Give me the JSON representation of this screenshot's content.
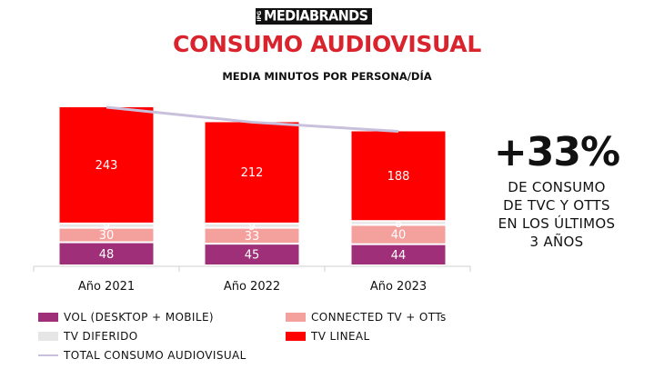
{
  "header": {
    "logo_prefix": "IPG",
    "logo_text": "MEDIABRANDS",
    "title": "CONSUMO AUDIOVISUAL",
    "subtitle": "MEDIA MINUTOS POR PERSONA/DÍA"
  },
  "callout": {
    "value": "+33%",
    "lines": [
      "DE CONSUMO",
      "DE TVC Y OTTS",
      "EN LOS ÚLTIMOS",
      "3 AÑOS"
    ]
  },
  "legend": {
    "vol": "VOL (DESKTOP + MOBILE)",
    "ctv": "CONNECTED TV + OTTs",
    "diferido": "TV DIFERIDO",
    "lineal": "TV LINEAL",
    "total": "TOTAL CONSUMO AUDIOVISUAL"
  },
  "chart_data": {
    "type": "bar",
    "stacked": true,
    "categories": [
      "Año 2021",
      "Año 2022",
      "Año 2023"
    ],
    "series": [
      {
        "name": "VOL (DESKTOP + MOBILE)",
        "values": [
          48,
          45,
          44
        ],
        "color": "#9e2f78"
      },
      {
        "name": "CONNECTED TV + OTTs",
        "values": [
          30,
          33,
          40
        ],
        "color": "#f4a09c"
      },
      {
        "name": "TV DIFERIDO",
        "values": [
          9,
          9,
          8
        ],
        "color": "#e6e6e6"
      },
      {
        "name": "TV LINEAL",
        "values": [
          243,
          212,
          188
        ],
        "color": "#ff0000"
      }
    ],
    "line_series": {
      "name": "TOTAL CONSUMO AUDIOVISUAL",
      "values": [
        330,
        299,
        280
      ],
      "color": "#c8c0dc"
    },
    "ylim": [
      0,
      330
    ],
    "grid": false,
    "legend_position": "bottom"
  }
}
